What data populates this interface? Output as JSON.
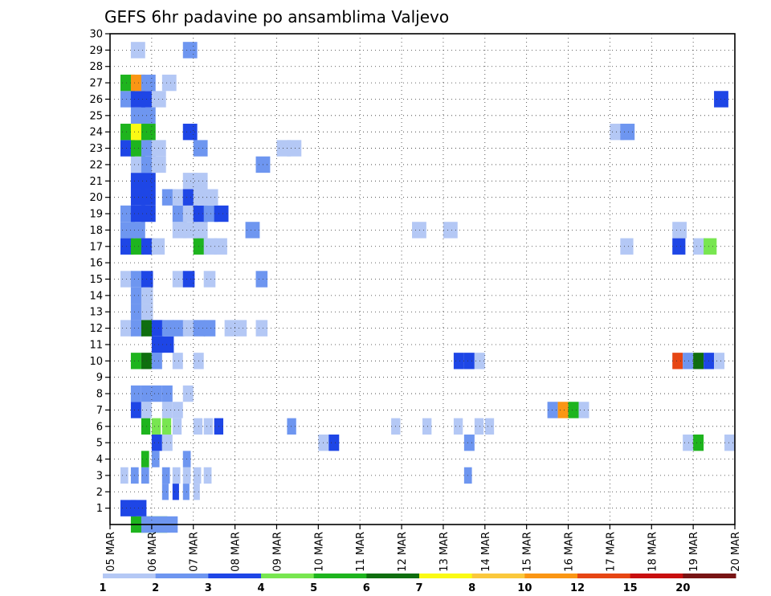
{
  "chart_data": {
    "type": "heatmap",
    "title": "GEFS 6hr padavine po ansamblima Valjevo",
    "xlabel": "",
    "ylabel": "",
    "x_tick_labels": [
      "05 MAR",
      "06 MAR",
      "07 MAR",
      "08 MAR",
      "09 MAR",
      "10 MAR",
      "11 MAR",
      "12 MAR",
      "13 MAR",
      "14 MAR",
      "15 MAR",
      "16 MAR",
      "17 MAR",
      "18 MAR",
      "19 MAR",
      "20 MAR"
    ],
    "y_tick_labels": [
      "1",
      "2",
      "3",
      "4",
      "5",
      "6",
      "7",
      "8",
      "9",
      "10",
      "11",
      "12",
      "13",
      "14",
      "15",
      "16",
      "17",
      "18",
      "19",
      "20",
      "21",
      "22",
      "23",
      "24",
      "25",
      "26",
      "27",
      "28",
      "29",
      "30"
    ],
    "x_range_days": [
      0,
      15
    ],
    "time_step_hours": 6,
    "y_range": [
      0,
      30
    ],
    "grid": true,
    "legend_position": "bottom",
    "legend_levels": [
      "1",
      "2",
      "3",
      "4",
      "5",
      "6",
      "7",
      "8",
      "10",
      "12",
      "15",
      "20"
    ],
    "color_scale": [
      "#b4c8f5",
      "#6e96f0",
      "#1e46e6",
      "#78e650",
      "#1eb41e",
      "#0f6e0f",
      "#fafa14",
      "#fac83c",
      "#fa9614",
      "#e64614",
      "#c80f0f",
      "#781414"
    ],
    "cell_encoding": "member, 6h step from 05 MAR 00, color class index 0-11",
    "cells": [
      [
        0,
        28,
        2,
        4
      ],
      [
        0,
        28,
        3,
        1
      ],
      [
        1,
        12,
        1,
        2
      ],
      [
        1,
        12,
        2,
        2
      ],
      [
        2,
        5,
        5,
        1
      ],
      [
        2,
        5,
        6,
        2
      ],
      [
        2,
        5,
        7,
        1
      ],
      [
        2,
        5,
        8,
        0
      ],
      [
        3,
        6,
        1,
        0
      ],
      [
        3,
        6,
        2,
        1
      ],
      [
        3,
        6,
        3,
        1
      ],
      [
        3,
        6,
        5,
        1
      ],
      [
        3,
        6,
        6,
        0
      ],
      [
        3,
        6,
        7,
        0
      ],
      [
        3,
        6,
        8,
        0
      ],
      [
        3,
        6,
        9,
        0
      ],
      [
        3,
        6,
        34,
        1
      ],
      [
        4,
        6,
        3,
        4
      ],
      [
        4,
        6,
        4,
        1
      ],
      [
        4,
        6,
        7,
        1
      ],
      [
        5,
        8,
        4,
        2
      ],
      [
        5,
        8,
        5,
        0
      ],
      [
        5,
        8,
        20,
        0
      ],
      [
        5,
        8,
        21,
        2
      ],
      [
        5,
        8,
        34,
        1
      ],
      [
        5,
        8,
        55,
        0
      ],
      [
        5,
        8,
        56,
        4
      ],
      [
        5,
        8,
        59,
        0
      ],
      [
        6,
        7,
        3,
        4
      ],
      [
        6,
        7,
        4,
        3
      ],
      [
        6,
        7,
        5,
        3
      ],
      [
        6,
        7,
        6,
        0
      ],
      [
        6,
        7,
        8,
        0
      ],
      [
        6,
        7,
        9,
        0
      ],
      [
        6,
        7,
        10,
        2
      ],
      [
        6,
        7,
        17,
        1
      ],
      [
        6,
        7,
        27,
        0
      ],
      [
        6,
        7,
        30,
        0
      ],
      [
        6,
        7,
        33,
        0
      ],
      [
        6,
        7,
        35,
        0
      ],
      [
        6,
        7,
        36,
        0
      ],
      [
        7,
        8,
        2,
        2
      ],
      [
        7,
        8,
        3,
        0
      ],
      [
        7,
        8,
        5,
        0
      ],
      [
        7,
        8,
        6,
        0
      ],
      [
        7,
        8,
        42,
        1
      ],
      [
        7,
        8,
        43,
        8
      ],
      [
        7,
        8,
        44,
        4
      ],
      [
        7,
        8,
        45,
        0
      ],
      [
        8,
        8,
        2,
        1
      ],
      [
        8,
        8,
        3,
        1
      ],
      [
        8,
        8,
        4,
        1
      ],
      [
        8,
        8,
        5,
        1
      ],
      [
        8,
        8,
        7,
        0
      ],
      [
        10,
        8,
        2,
        4
      ],
      [
        10,
        8,
        3,
        5
      ],
      [
        10,
        8,
        4,
        1
      ],
      [
        10,
        8,
        6,
        0
      ],
      [
        10,
        8,
        8,
        0
      ],
      [
        10,
        8,
        33,
        2
      ],
      [
        10,
        8,
        34,
        2
      ],
      [
        10,
        8,
        35,
        0
      ],
      [
        10,
        8,
        54,
        9
      ],
      [
        10,
        8,
        55,
        1
      ],
      [
        10,
        8,
        56,
        5
      ],
      [
        10,
        8,
        57,
        2
      ],
      [
        10,
        8,
        58,
        0
      ],
      [
        11,
        9,
        4,
        2
      ],
      [
        11,
        9,
        5,
        2
      ],
      [
        12,
        9,
        1,
        0
      ],
      [
        12,
        9,
        2,
        1
      ],
      [
        12,
        9,
        3,
        5
      ],
      [
        12,
        9,
        4,
        2
      ],
      [
        12,
        9,
        5,
        1
      ],
      [
        12,
        9,
        6,
        1
      ],
      [
        12,
        9,
        7,
        0
      ],
      [
        12,
        9,
        8,
        1
      ],
      [
        12,
        9,
        9,
        1
      ],
      [
        12,
        9,
        11,
        0
      ],
      [
        12,
        9,
        12,
        0
      ],
      [
        12,
        9,
        14,
        0
      ],
      [
        13,
        9,
        2,
        1
      ],
      [
        13,
        9,
        3,
        0
      ],
      [
        14,
        9,
        2,
        1
      ],
      [
        14,
        9,
        3,
        0
      ],
      [
        15,
        9,
        1,
        0
      ],
      [
        15,
        9,
        2,
        1
      ],
      [
        15,
        9,
        3,
        2
      ],
      [
        15,
        9,
        6,
        0
      ],
      [
        15,
        9,
        7,
        2
      ],
      [
        15,
        9,
        9,
        0
      ],
      [
        15,
        9,
        14,
        1
      ],
      [
        17,
        10,
        1,
        2
      ],
      [
        17,
        10,
        2,
        4
      ],
      [
        17,
        10,
        3,
        2
      ],
      [
        17,
        10,
        4,
        0
      ],
      [
        17,
        10,
        8,
        4
      ],
      [
        17,
        10,
        9,
        0
      ],
      [
        17,
        10,
        10,
        0
      ],
      [
        17,
        10,
        49,
        0
      ],
      [
        17,
        10,
        54,
        2
      ],
      [
        17,
        10,
        56,
        0
      ],
      [
        17,
        10,
        57,
        3
      ],
      [
        18,
        11,
        1,
        1
      ],
      [
        18,
        11,
        2,
        1
      ],
      [
        18,
        11,
        6,
        0
      ],
      [
        18,
        11,
        7,
        0
      ],
      [
        18,
        11,
        8,
        0
      ],
      [
        18,
        11,
        13,
        1
      ],
      [
        18,
        11,
        29,
        0
      ],
      [
        18,
        11,
        32,
        0
      ],
      [
        18,
        11,
        54,
        0
      ],
      [
        19,
        11,
        1,
        1
      ],
      [
        19,
        11,
        2,
        2
      ],
      [
        19,
        11,
        3,
        2
      ],
      [
        19,
        11,
        6,
        1
      ],
      [
        19,
        11,
        7,
        0
      ],
      [
        19,
        11,
        8,
        2
      ],
      [
        19,
        11,
        9,
        1
      ],
      [
        19,
        11,
        10,
        2
      ],
      [
        20,
        11,
        2,
        2
      ],
      [
        20,
        11,
        3,
        2
      ],
      [
        20,
        11,
        5,
        1
      ],
      [
        20,
        11,
        6,
        0
      ],
      [
        20,
        11,
        7,
        2
      ],
      [
        20,
        11,
        8,
        0
      ],
      [
        20,
        11,
        9,
        0
      ],
      [
        21,
        11,
        2,
        2
      ],
      [
        21,
        11,
        3,
        2
      ],
      [
        21,
        11,
        7,
        0
      ],
      [
        21,
        11,
        8,
        0
      ],
      [
        22,
        11,
        2,
        0
      ],
      [
        22,
        11,
        3,
        1
      ],
      [
        22,
        11,
        4,
        0
      ],
      [
        22,
        11,
        14,
        1
      ],
      [
        23,
        11,
        1,
        2
      ],
      [
        23,
        11,
        2,
        4
      ],
      [
        23,
        11,
        3,
        1
      ],
      [
        23,
        11,
        4,
        0
      ],
      [
        23,
        11,
        8,
        1
      ],
      [
        23,
        11,
        16,
        0
      ],
      [
        23,
        11,
        17,
        0
      ],
      [
        24,
        11,
        1,
        4
      ],
      [
        24,
        11,
        2,
        6
      ],
      [
        24,
        11,
        3,
        4
      ],
      [
        24,
        11,
        7,
        2
      ],
      [
        24,
        11,
        48,
        0
      ],
      [
        24,
        11,
        49,
        1
      ],
      [
        25,
        11,
        2,
        1
      ],
      [
        25,
        11,
        3,
        1
      ],
      [
        26,
        11,
        1,
        1
      ],
      [
        26,
        11,
        2,
        2
      ],
      [
        26,
        11,
        3,
        2
      ],
      [
        26,
        11,
        4,
        0
      ],
      [
        26,
        11,
        58,
        2
      ],
      [
        27,
        11,
        1,
        4
      ],
      [
        27,
        11,
        2,
        8
      ],
      [
        27,
        11,
        3,
        1
      ],
      [
        27,
        11,
        5,
        0
      ],
      [
        29,
        11,
        2,
        0
      ],
      [
        29,
        11,
        7,
        1
      ]
    ]
  }
}
